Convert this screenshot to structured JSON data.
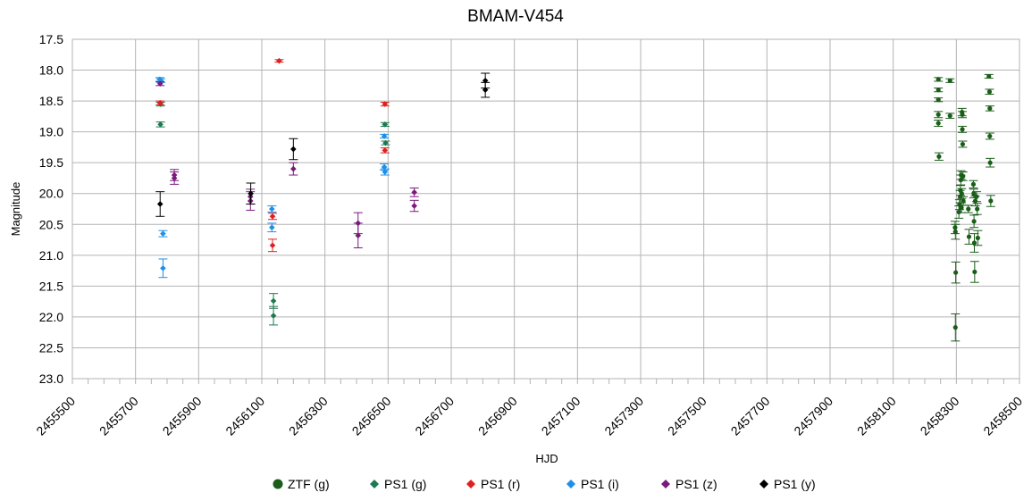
{
  "chart_data": {
    "type": "scatter",
    "title": "BMAM-V454",
    "xlabel": "HJD",
    "ylabel": "Magnitude",
    "xlim": [
      2455500,
      2458500
    ],
    "ylim": [
      17.5,
      23.0
    ],
    "y_inverted": true,
    "x_major_step": 200,
    "x_minor_step": 50,
    "y_step": 0.5,
    "x_tick_labels": [
      "2455500",
      "2455700",
      "2455900",
      "2456100",
      "2456300",
      "2456500",
      "2456700",
      "2456900",
      "2457100",
      "2457300",
      "2457500",
      "2457700",
      "2457900",
      "2458100",
      "2458300",
      "2458500"
    ],
    "y_tick_labels": [
      "17.5",
      "18.0",
      "18.5",
      "19.0",
      "19.5",
      "20.0",
      "20.5",
      "21.0",
      "21.5",
      "22.0",
      "22.5",
      "23.0"
    ],
    "grid": true,
    "legend_position": "bottom",
    "series": [
      {
        "name": "ZTF (g)",
        "color": "#1a5e1a",
        "marker": "circle",
        "points": [
          [
            2458243,
            18.15,
            0.03
          ],
          [
            2458243,
            18.32,
            0.03
          ],
          [
            2458243,
            18.48,
            0.03
          ],
          [
            2458243,
            18.72,
            0.05
          ],
          [
            2458243,
            18.86,
            0.05
          ],
          [
            2458245,
            19.4,
            0.06
          ],
          [
            2458280,
            18.17,
            0.03
          ],
          [
            2458280,
            18.74,
            0.04
          ],
          [
            2458296,
            20.55,
            0.1
          ],
          [
            2458297,
            20.62,
            0.12
          ],
          [
            2458298,
            21.28,
            0.17
          ],
          [
            2458297,
            22.17,
            0.22
          ],
          [
            2458308,
            20.3,
            0.1
          ],
          [
            2458310,
            20.18,
            0.08
          ],
          [
            2458312,
            20.05,
            0.1
          ],
          [
            2458313,
            19.95,
            0.08
          ],
          [
            2458314,
            19.78,
            0.08
          ],
          [
            2458315,
            19.7,
            0.07
          ],
          [
            2458316,
            20.23,
            0.08
          ],
          [
            2458317,
            20.0,
            0.08
          ],
          [
            2458318,
            18.68,
            0.06
          ],
          [
            2458319,
            18.72,
            0.05
          ],
          [
            2458319,
            18.96,
            0.05
          ],
          [
            2458320,
            19.2,
            0.05
          ],
          [
            2458321,
            19.72,
            0.07
          ],
          [
            2458322,
            20.12,
            0.07
          ],
          [
            2458338,
            20.25,
            0.06
          ],
          [
            2458340,
            20.7,
            0.12
          ],
          [
            2458354,
            19.85,
            0.06
          ],
          [
            2458355,
            20.0,
            0.07
          ],
          [
            2458356,
            20.45,
            0.1
          ],
          [
            2458357,
            20.8,
            0.15
          ],
          [
            2458358,
            21.27,
            0.17
          ],
          [
            2458360,
            20.12,
            0.08
          ],
          [
            2458364,
            20.05,
            0.08
          ],
          [
            2458366,
            20.25,
            0.09
          ],
          [
            2458368,
            20.72,
            0.12
          ],
          [
            2458403,
            18.1,
            0.03
          ],
          [
            2458405,
            18.35,
            0.04
          ],
          [
            2458406,
            18.62,
            0.04
          ],
          [
            2458406,
            19.07,
            0.05
          ],
          [
            2458407,
            19.5,
            0.07
          ],
          [
            2458409,
            20.12,
            0.09
          ]
        ]
      },
      {
        "name": "PS1 (g)",
        "color": "#1b7a4e",
        "marker": "diamond",
        "points": [
          [
            2455779,
            18.55,
            0.03
          ],
          [
            2455779,
            18.88,
            0.04
          ],
          [
            2456137,
            21.74,
            0.12
          ],
          [
            2456137,
            21.98,
            0.15
          ],
          [
            2456490,
            18.88,
            0.03
          ],
          [
            2456492,
            19.18,
            0.03
          ]
        ]
      },
      {
        "name": "PS1 (r)",
        "color": "#e02020",
        "marker": "diamond",
        "points": [
          [
            2455778,
            18.53,
            0.03
          ],
          [
            2456134,
            20.37,
            0.05
          ],
          [
            2456134,
            20.84,
            0.1
          ],
          [
            2456155,
            17.85,
            0.02
          ],
          [
            2456490,
            18.55,
            0.03
          ],
          [
            2456490,
            19.3,
            0.04
          ]
        ]
      },
      {
        "name": "PS1 (i)",
        "color": "#1e8fe8",
        "marker": "diamond",
        "points": [
          [
            2455777,
            18.15,
            0.03
          ],
          [
            2455780,
            18.17,
            0.03
          ],
          [
            2455787,
            20.65,
            0.05
          ],
          [
            2455787,
            21.21,
            0.15
          ],
          [
            2456132,
            20.25,
            0.05
          ],
          [
            2456132,
            20.55,
            0.07
          ],
          [
            2456488,
            19.07,
            0.03
          ],
          [
            2456488,
            19.57,
            0.05
          ],
          [
            2456490,
            19.65,
            0.05
          ]
        ]
      },
      {
        "name": "PS1 (z)",
        "color": "#7a1a7a",
        "marker": "diamond",
        "points": [
          [
            2455778,
            18.22,
            0.03
          ],
          [
            2455823,
            19.7,
            0.09
          ],
          [
            2455823,
            19.75,
            0.1
          ],
          [
            2456064,
            20.05,
            0.12
          ],
          [
            2456064,
            20.12,
            0.15
          ],
          [
            2456200,
            19.6,
            0.1
          ],
          [
            2456405,
            20.48,
            0.17
          ],
          [
            2456405,
            20.68,
            0.2
          ],
          [
            2456583,
            19.98,
            0.07
          ],
          [
            2456583,
            20.2,
            0.09
          ]
        ]
      },
      {
        "name": "PS1 (y)",
        "color": "#000000",
        "marker": "diamond",
        "points": [
          [
            2455778,
            20.17,
            0.2
          ],
          [
            2456065,
            20.0,
            0.17
          ],
          [
            2456200,
            19.28,
            0.17
          ],
          [
            2456808,
            18.17,
            0.12
          ],
          [
            2456808,
            18.32,
            0.12
          ]
        ]
      }
    ]
  }
}
